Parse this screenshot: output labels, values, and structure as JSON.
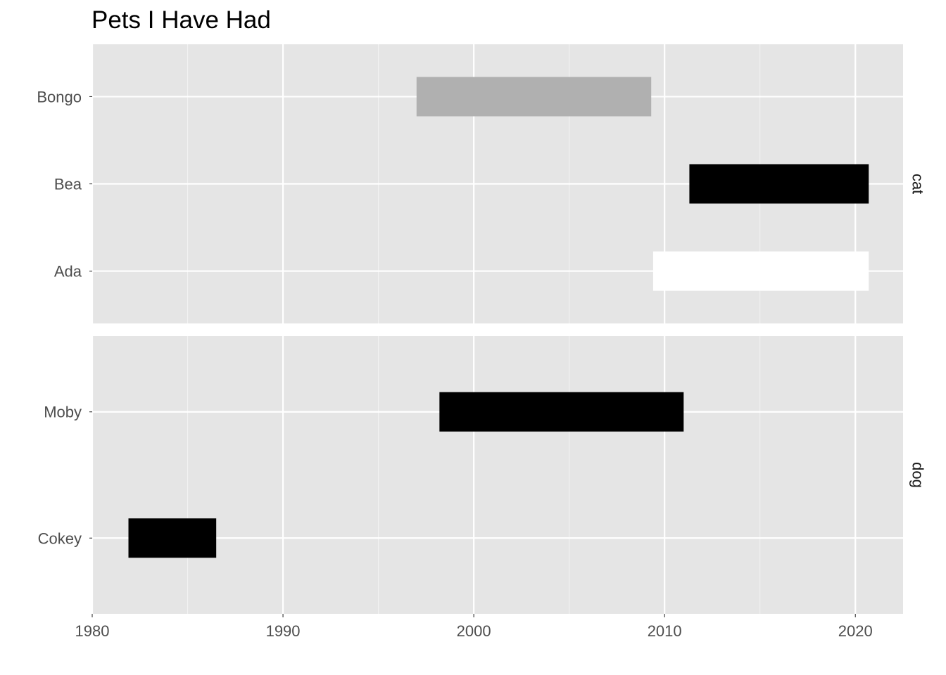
{
  "chart_data": {
    "type": "bar",
    "orientation": "horizontal-range",
    "title": "Pets I Have Had",
    "xlabel": "",
    "ylabel": "",
    "xlim": [
      1980,
      2022.5
    ],
    "x_ticks": [
      1980,
      1990,
      2000,
      2010,
      2020
    ],
    "grid": true,
    "legend": "none",
    "facets": [
      {
        "label": "cat",
        "categories": [
          "Bongo",
          "Bea",
          "Ada"
        ],
        "bars": [
          {
            "name": "Bongo",
            "start": 1997.0,
            "end": 2009.3,
            "color": "#b0b0b0"
          },
          {
            "name": "Bea",
            "start": 2011.3,
            "end": 2020.7,
            "color": "#000000"
          },
          {
            "name": "Ada",
            "start": 2009.4,
            "end": 2020.7,
            "color": "#ffffff"
          }
        ]
      },
      {
        "label": "dog",
        "categories": [
          "Moby",
          "Cokey"
        ],
        "bars": [
          {
            "name": "Moby",
            "start": 1998.2,
            "end": 2011.0,
            "color": "#000000"
          },
          {
            "name": "Cokey",
            "start": 1981.9,
            "end": 1986.5,
            "color": "#000000"
          }
        ]
      }
    ]
  }
}
